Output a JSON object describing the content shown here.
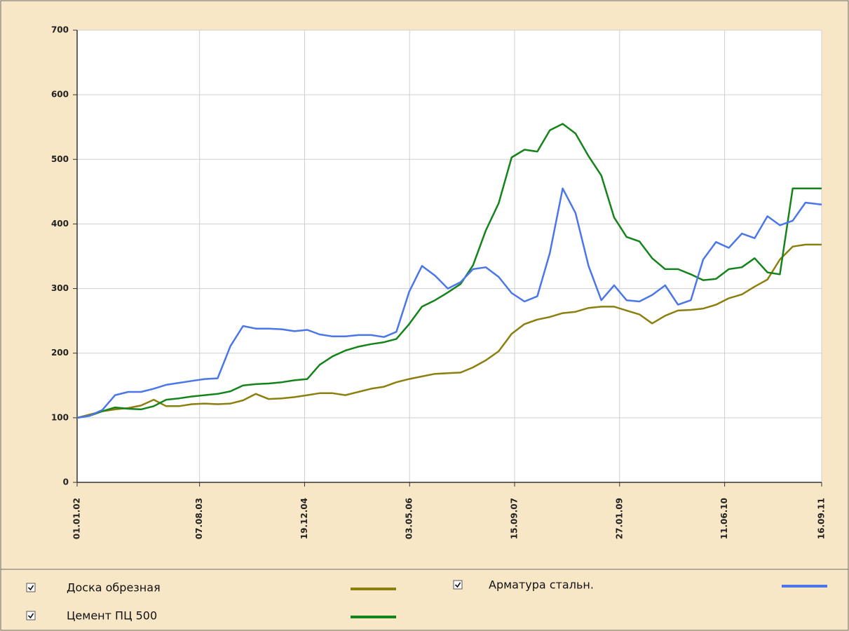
{
  "chart_data": {
    "type": "line",
    "x": [
      "2002-01-01",
      "2002-03-01",
      "2002-05-01",
      "2002-07-01",
      "2002-09-01",
      "2002-11-01",
      "2003-01-01",
      "2003-03-01",
      "2003-05-01",
      "2003-07-01",
      "2003-09-01",
      "2003-11-01",
      "2004-01-01",
      "2004-03-01",
      "2004-05-01",
      "2004-07-01",
      "2004-09-01",
      "2004-11-01",
      "2005-01-01",
      "2005-03-01",
      "2005-05-01",
      "2005-07-01",
      "2005-09-01",
      "2005-11-01",
      "2006-01-01",
      "2006-03-01",
      "2006-05-01",
      "2006-07-01",
      "2006-09-01",
      "2006-11-01",
      "2007-01-01",
      "2007-03-01",
      "2007-05-01",
      "2007-07-01",
      "2007-09-01",
      "2007-11-01",
      "2008-01-01",
      "2008-03-01",
      "2008-05-01",
      "2008-07-01",
      "2008-09-01",
      "2008-11-01",
      "2009-01-01",
      "2009-03-01",
      "2009-05-01",
      "2009-07-01",
      "2009-09-01",
      "2009-11-01",
      "2010-01-01",
      "2010-03-01",
      "2010-05-01",
      "2010-07-01",
      "2010-09-01",
      "2010-11-01",
      "2011-01-01",
      "2011-03-01",
      "2011-05-01",
      "2011-07-01",
      "2011-09-16"
    ],
    "series": [
      {
        "name": "Доска обрезная",
        "color": "#8c7f0e",
        "values": [
          100,
          105,
          110,
          113,
          115,
          119,
          128,
          118,
          118,
          121,
          122,
          121,
          122,
          127,
          137,
          129,
          130,
          132,
          135,
          138,
          138,
          135,
          140,
          145,
          148,
          155,
          160,
          164,
          168,
          169,
          170,
          178,
          189,
          203,
          230,
          245,
          252,
          256,
          262,
          264,
          270,
          272,
          272,
          266,
          260,
          246,
          258,
          266,
          267,
          269,
          275,
          285,
          291,
          303,
          314,
          345,
          365,
          368,
          368
        ]
      },
      {
        "name": "Цемент ПЦ 500",
        "color": "#14841a",
        "values": [
          100,
          103,
          110,
          116,
          114,
          113,
          118,
          128,
          130,
          133,
          135,
          137,
          141,
          150,
          152,
          153,
          155,
          158,
          160,
          182,
          195,
          204,
          210,
          214,
          217,
          222,
          245,
          272,
          282,
          294,
          307,
          336,
          390,
          432,
          503,
          515,
          512,
          545,
          555,
          540,
          505,
          475,
          410,
          380,
          373,
          347,
          330,
          330,
          322,
          313,
          315,
          330,
          333,
          347,
          325,
          322,
          455,
          455,
          455
        ]
      },
      {
        "name": "Арматура стальн.",
        "color": "#4a76ea",
        "values": [
          100,
          103,
          112,
          135,
          140,
          140,
          145,
          151,
          154,
          157,
          160,
          161,
          211,
          242,
          238,
          238,
          237,
          234,
          236,
          229,
          226,
          226,
          228,
          228,
          225,
          233,
          295,
          335,
          320,
          300,
          310,
          330,
          333,
          318,
          293,
          280,
          288,
          355,
          455,
          417,
          335,
          282,
          305,
          282,
          280,
          290,
          305,
          275,
          282,
          345,
          372,
          363,
          385,
          378,
          412,
          398,
          405,
          433,
          430
        ]
      }
    ],
    "xlim": [
      "2002-01-01",
      "2011-09-16"
    ],
    "xticks": [
      {
        "value": "2002-01-01",
        "label": "01.01.02"
      },
      {
        "value": "2003-08-07",
        "label": "07.08.03"
      },
      {
        "value": "2004-12-19",
        "label": "19.12.04"
      },
      {
        "value": "2006-05-03",
        "label": "03.05.06"
      },
      {
        "value": "2007-09-15",
        "label": "15.09.07"
      },
      {
        "value": "2009-01-27",
        "label": "27.01.09"
      },
      {
        "value": "2010-06-11",
        "label": "11.06.10"
      },
      {
        "value": "2011-09-16",
        "label": "16.09.11"
      }
    ],
    "ylim": [
      0,
      700
    ],
    "yticks": [
      0,
      100,
      200,
      300,
      400,
      500,
      600,
      700
    ],
    "grid": true
  }
}
